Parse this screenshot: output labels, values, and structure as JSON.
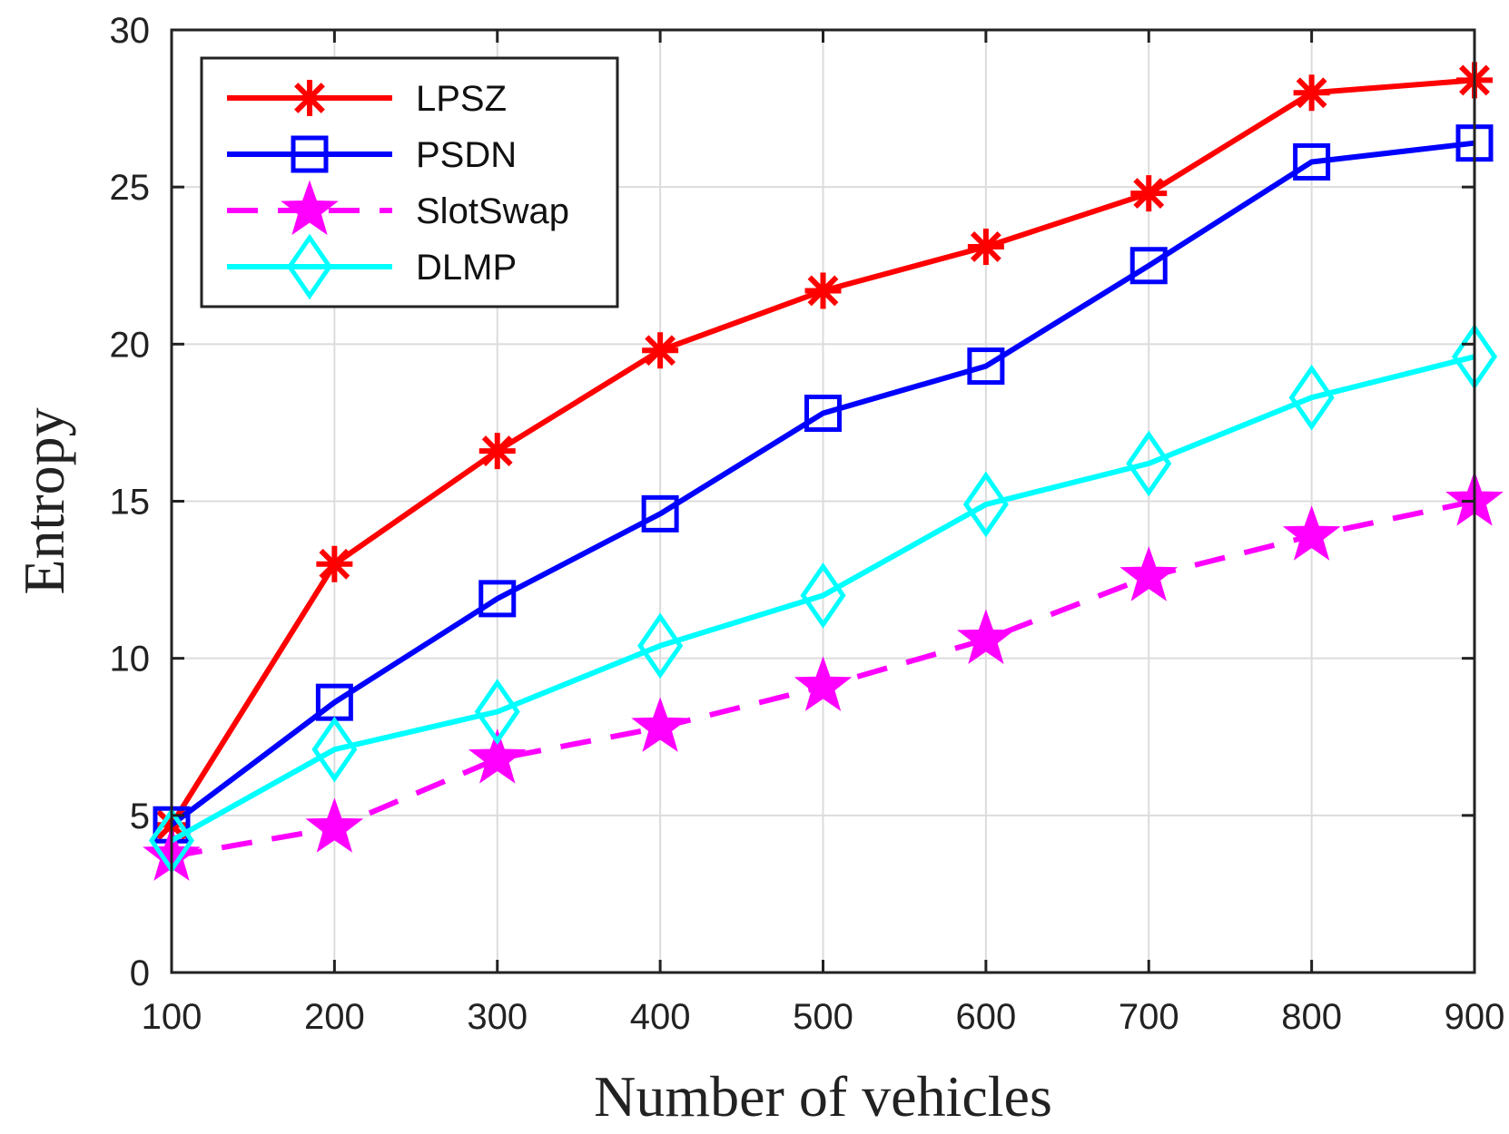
{
  "chart_data": {
    "type": "line",
    "xlabel": "Number of vehicles",
    "ylabel": "Entropy",
    "x": [
      100,
      200,
      300,
      400,
      500,
      600,
      700,
      800,
      900
    ],
    "xlim": [
      100,
      900
    ],
    "ylim": [
      0,
      30
    ],
    "xticks": [
      "100",
      "200",
      "300",
      "400",
      "500",
      "600",
      "700",
      "800",
      "900"
    ],
    "yticks": [
      "0",
      "5",
      "10",
      "15",
      "20",
      "25",
      "30"
    ],
    "grid": true,
    "legend_position": "top-left",
    "series": [
      {
        "name": "LPSZ",
        "color": "#ff0000",
        "marker": "asterisk",
        "line_style": "solid",
        "values": [
          4.7,
          13.0,
          16.6,
          19.8,
          21.7,
          23.1,
          24.8,
          28.0,
          28.4
        ]
      },
      {
        "name": "PSDN",
        "color": "#0000ff",
        "marker": "square",
        "line_style": "solid",
        "values": [
          4.7,
          8.6,
          11.9,
          14.6,
          17.8,
          19.3,
          22.5,
          25.8,
          26.4
        ]
      },
      {
        "name": "SlotSwap",
        "color": "#ff00ff",
        "marker": "star",
        "line_style": "dashed",
        "values": [
          3.7,
          4.6,
          6.8,
          7.8,
          9.1,
          10.6,
          12.6,
          13.9,
          15.0
        ]
      },
      {
        "name": "DLMP",
        "color": "#00ffff",
        "marker": "diamond",
        "line_style": "solid",
        "values": [
          4.2,
          7.1,
          8.3,
          10.4,
          12.0,
          14.9,
          16.2,
          18.3,
          19.6
        ]
      }
    ]
  }
}
